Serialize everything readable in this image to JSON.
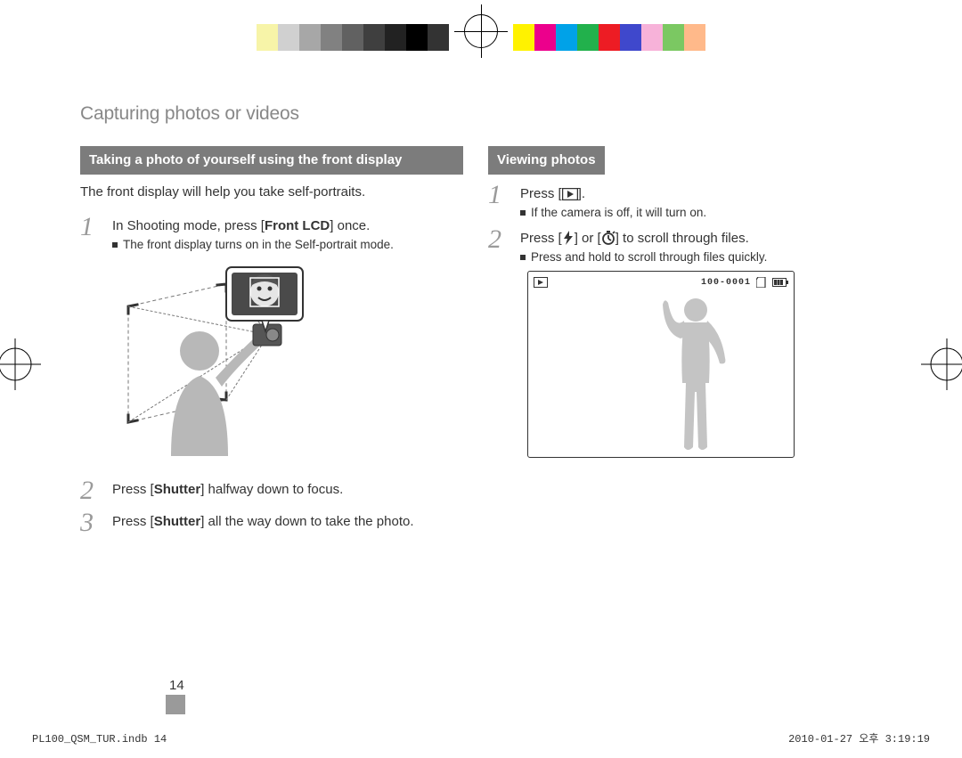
{
  "colors": {
    "bar_left": [
      "#ffffff",
      "#f7f4a8",
      "#d0d0d0",
      "#a7a7a7",
      "#818181",
      "#616161",
      "#3f3f3f",
      "#222222",
      "#000000",
      "#333333"
    ],
    "bar_right": [
      "#fff200",
      "#ec008c",
      "#00a2e8",
      "#22b14c",
      "#ed1c24",
      "#3f48cc",
      "#f7b2d9",
      "#7bc862",
      "#ffb98a",
      "#ffffff"
    ],
    "header_bg": "#7c7c7c",
    "header_fg": "#ffffff",
    "title_color": "#888888",
    "stepnum_color": "#9a9a9a",
    "text": "#333333"
  },
  "page_title": "Capturing photos or videos",
  "left_section": {
    "header": "Taking a photo of yourself using the front display",
    "intro": "The front display will help you take self-portraits.",
    "steps": [
      {
        "num": "1",
        "text_pre": "In Shooting mode, press [",
        "text_bold": "Front LCD",
        "text_post": "] once.",
        "sub": "The front display turns on in the Self-portrait mode."
      },
      {
        "num": "2",
        "text_pre": "Press [",
        "text_bold": "Shutter",
        "text_post": "] halfway down to focus."
      },
      {
        "num": "3",
        "text_pre": "Press [",
        "text_bold": "Shutter",
        "text_post": "] all the way down to take the photo."
      }
    ]
  },
  "right_section": {
    "header": "Viewing photos",
    "steps": [
      {
        "num": "1",
        "text": "Press [",
        "icon": "play",
        "text2": "].",
        "sub": "If the camera is off, it will turn on."
      },
      {
        "num": "2",
        "text": "Press [",
        "icon": "flash",
        "text2": "] or [",
        "icon2": "timer",
        "text3": "] to scroll through files.",
        "sub": "Press and hold to scroll through files quickly."
      }
    ],
    "frame_label": "100-0001"
  },
  "page_number": "14",
  "footer_left": "PL100_QSM_TUR.indb   14",
  "footer_right": "2010-01-27   오후 3:19:19"
}
